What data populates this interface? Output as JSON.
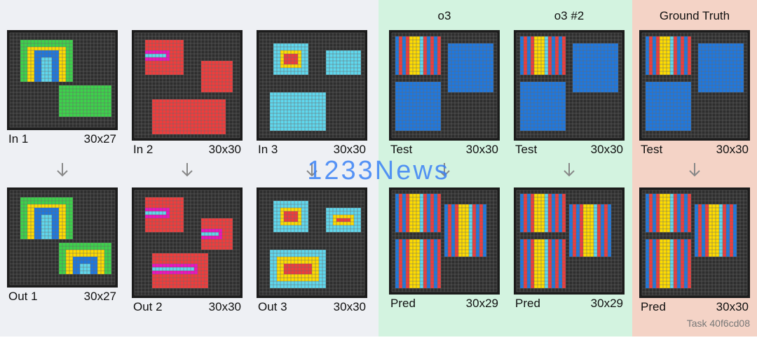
{
  "examples": [
    {
      "input": {
        "label": "In 1",
        "size": "30x27"
      },
      "output": {
        "label": "Out 1",
        "size": "30x27"
      }
    },
    {
      "input": {
        "label": "In 2",
        "size": "30x30"
      },
      "output": {
        "label": "Out 2",
        "size": "30x30"
      }
    },
    {
      "input": {
        "label": "In 3",
        "size": "30x30"
      },
      "output": {
        "label": "Out 3",
        "size": "30x30"
      }
    }
  ],
  "attempts": [
    {
      "title": "o3",
      "test": {
        "label": "Test",
        "size": "30x30"
      },
      "prediction": {
        "label": "Pred",
        "size": "30x29"
      }
    },
    {
      "title": "o3 #2",
      "test": {
        "label": "Test",
        "size": "30x30"
      },
      "prediction": {
        "label": "Pred",
        "size": "30x29"
      }
    },
    {
      "title": "Ground Truth",
      "test": {
        "label": "Test",
        "size": "30x30"
      },
      "prediction": {
        "label": "Pred",
        "size": "30x30"
      }
    }
  ],
  "task": "Task 40f6cd08",
  "watermark": "1233News"
}
